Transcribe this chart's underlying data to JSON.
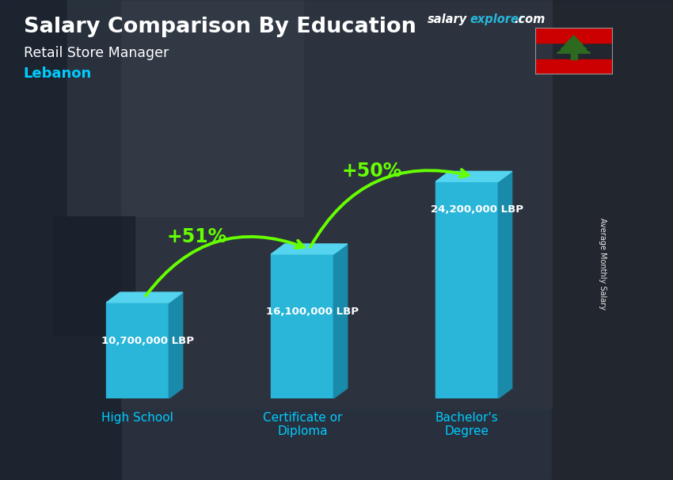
{
  "title": "Salary Comparison By Education",
  "subtitle": "Retail Store Manager",
  "country": "Lebanon",
  "categories": [
    "High School",
    "Certificate or\nDiploma",
    "Bachelor's\nDegree"
  ],
  "values": [
    10700000,
    16100000,
    24200000
  ],
  "labels": [
    "10,700,000 LBP",
    "16,100,000 LBP",
    "24,200,000 LBP"
  ],
  "pct_labels": [
    "+51%",
    "+50%"
  ],
  "bar_color_front": "#29b6d8",
  "bar_color_top": "#55d4f0",
  "bar_color_side": "#1a8aaa",
  "text_color_white": "#ffffff",
  "text_color_cyan": "#00ccff",
  "text_color_green": "#66ff00",
  "ylabel": "Average Monthly Salary",
  "ylim": [
    0,
    30000000
  ],
  "bar_width": 0.38,
  "bg_dark": "#1c2a38",
  "watermark_salary_color": "#ffffff",
  "watermark_explorer_color": "#29b6d8",
  "watermark_dot_com_color": "#ffffff"
}
